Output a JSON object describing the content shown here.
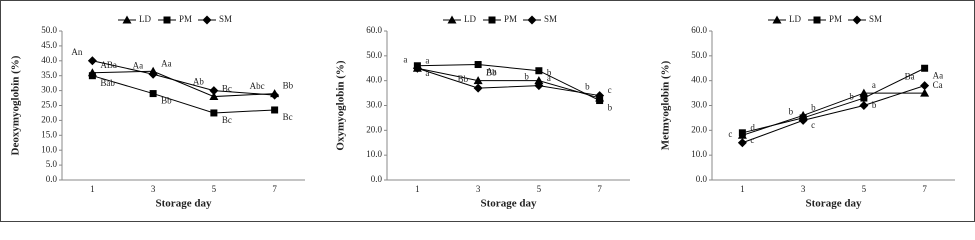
{
  "chart_data": [
    {
      "type": "line",
      "y_label": "Deoxymyoglobin (%)",
      "x_label": "Storage day",
      "categories": [
        "1",
        "3",
        "5",
        "7"
      ],
      "ylim": [
        0,
        50
      ],
      "yticks": [
        {
          "value": 0,
          "label": "0.0"
        },
        {
          "value": 5,
          "label": "5.0"
        },
        {
          "value": 10,
          "label": "10.0"
        },
        {
          "value": 15,
          "label": "15.0"
        },
        {
          "value": 20,
          "label": "20.0"
        },
        {
          "value": 25,
          "label": "25.0"
        },
        {
          "value": 30,
          "label": "30.0"
        },
        {
          "value": 35,
          "label": "35.0"
        },
        {
          "value": 40,
          "label": "40.0"
        },
        {
          "value": 45,
          "label": "45.0"
        },
        {
          "value": 50,
          "label": "50.0"
        }
      ],
      "series": [
        {
          "name": "LD",
          "color": "#000000",
          "marker": "triangle",
          "values": [
            36,
            36.5,
            28,
            29
          ],
          "letters": [
            "ABa",
            "Aa",
            "Bc",
            "Bb"
          ]
        },
        {
          "name": "PM",
          "color": "#000000",
          "marker": "square",
          "values": [
            35,
            29,
            22.5,
            23.5
          ],
          "letters": [
            "Bab",
            "Bb",
            "Bc",
            "Bc"
          ]
        },
        {
          "name": "SM",
          "color": "#000000",
          "marker": "diamond",
          "values": [
            40,
            35.5,
            30,
            28.5
          ],
          "letters": [
            "An",
            "Aa",
            "Ab",
            "Abc"
          ]
        }
      ]
    },
    {
      "type": "line",
      "y_label": "Oxymyoglobin (%)",
      "x_label": "Storage day",
      "categories": [
        "1",
        "3",
        "5",
        "7"
      ],
      "ylim": [
        0,
        60
      ],
      "yticks": [
        {
          "value": 0,
          "label": "0.0"
        },
        {
          "value": 10,
          "label": "10.0"
        },
        {
          "value": 20,
          "label": "20.0"
        },
        {
          "value": 30,
          "label": "30.0"
        },
        {
          "value": 40,
          "label": "40.0"
        },
        {
          "value": 50,
          "label": "50.0"
        },
        {
          "value": 60,
          "label": "60.0"
        }
      ],
      "series": [
        {
          "name": "LD",
          "color": "#000000",
          "marker": "triangle",
          "values": [
            45,
            40,
            40,
            33
          ],
          "letters": [
            "a",
            "Bb",
            "b",
            "c"
          ]
        },
        {
          "name": "PM",
          "color": "#000000",
          "marker": "square",
          "values": [
            46,
            46.5,
            44,
            32
          ],
          "letters": [
            "a",
            "Aa",
            "a",
            "b"
          ]
        },
        {
          "name": "SM",
          "color": "#000000",
          "marker": "diamond",
          "values": [
            45,
            37,
            38,
            34
          ],
          "letters": [
            "a",
            "Bb",
            "b",
            "b"
          ]
        }
      ]
    },
    {
      "type": "line",
      "y_label": "Metmyoglobin (%)",
      "x_label": "Storage day",
      "categories": [
        "1",
        "3",
        "5",
        "7"
      ],
      "ylim": [
        0,
        60
      ],
      "yticks": [
        {
          "value": 0,
          "label": "0.0"
        },
        {
          "value": 10,
          "label": "10.0"
        },
        {
          "value": 20,
          "label": "20.0"
        },
        {
          "value": 30,
          "label": "30.0"
        },
        {
          "value": 40,
          "label": "40.0"
        },
        {
          "value": 50,
          "label": "50.0"
        },
        {
          "value": 60,
          "label": "60.0"
        }
      ],
      "series": [
        {
          "name": "LD",
          "color": "#000000",
          "marker": "triangle",
          "values": [
            18,
            26,
            35,
            35
          ],
          "letters": [
            "d",
            "b",
            "a",
            "Ca"
          ]
        },
        {
          "name": "PM",
          "color": "#000000",
          "marker": "square",
          "values": [
            19,
            25,
            33,
            45
          ],
          "letters": [
            "c",
            "c",
            "b",
            "Aa"
          ]
        },
        {
          "name": "SM",
          "color": "#000000",
          "marker": "diamond",
          "values": [
            15,
            24,
            30,
            38
          ],
          "letters": [
            "c",
            "b",
            "b",
            "Ba"
          ]
        }
      ]
    }
  ]
}
